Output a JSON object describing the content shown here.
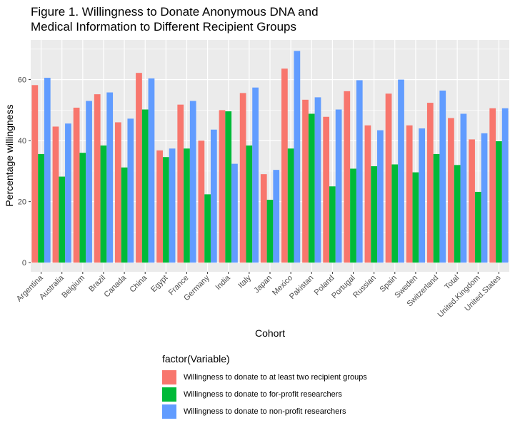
{
  "chart_data": {
    "type": "bar",
    "title_lines": [
      "Figure 1. Willingness to Donate Anonymous DNA and",
      "Medical Information to Different Recipient Groups"
    ],
    "xlabel": "Cohort",
    "ylabel": "Percentage willingness",
    "ylim": [
      -3,
      73
    ],
    "yticks": [
      0,
      20,
      40,
      60
    ],
    "grid": true,
    "legend_title": "factor(Variable)",
    "legend_position": "bottom",
    "categories": [
      "Argentina",
      "Australia",
      "Belgium",
      "Brazil",
      "Canada",
      "China",
      "Egypt",
      "France",
      "Germany",
      "India",
      "Italy",
      "Japan",
      "Mexico",
      "Pakistan",
      "Poland",
      "Portugal",
      "Russian",
      "Spain",
      "Sweden",
      "Switzerland",
      "Total",
      "United.Kingdom",
      "United.States"
    ],
    "series": [
      {
        "name": "Willingness to donate to at least two recipient groups",
        "color": "#F8766D",
        "values": [
          58.2,
          44.6,
          50.8,
          55.2,
          46.0,
          62.2,
          36.8,
          51.8,
          40.0,
          50.0,
          55.6,
          29.0,
          63.6,
          53.4,
          47.8,
          56.2,
          45.0,
          55.4,
          45.0,
          52.4,
          47.4,
          40.4,
          50.6
        ]
      },
      {
        "name": "Willingness to donate to for-profit researchers",
        "color": "#00BA38",
        "values": [
          35.6,
          28.2,
          36.0,
          38.4,
          31.2,
          50.2,
          34.6,
          37.4,
          22.4,
          49.6,
          38.4,
          20.6,
          37.4,
          48.8,
          25.0,
          30.8,
          31.6,
          32.2,
          29.6,
          35.6,
          32.0,
          23.2,
          39.8
        ]
      },
      {
        "name": "Willingness to donate to non-profit researchers",
        "color": "#619CFF",
        "values": [
          60.6,
          45.6,
          53.0,
          55.8,
          47.2,
          60.4,
          37.4,
          53.0,
          43.6,
          32.4,
          57.4,
          30.4,
          69.4,
          54.2,
          50.2,
          59.8,
          43.4,
          60.0,
          44.0,
          56.4,
          48.8,
          42.4,
          50.6
        ]
      }
    ]
  }
}
